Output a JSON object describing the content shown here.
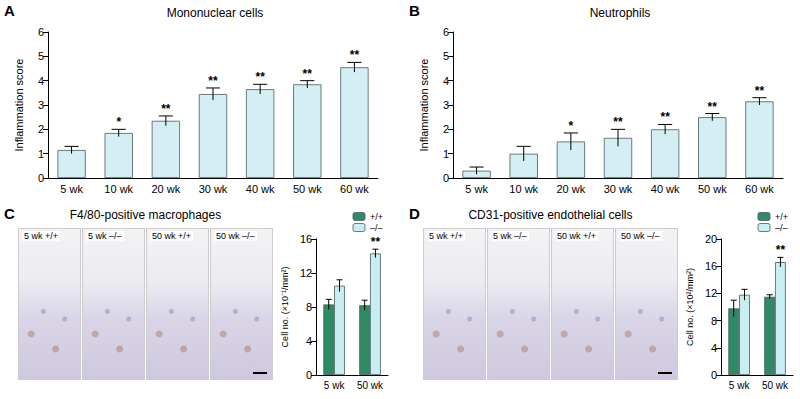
{
  "chart_data": [
    {
      "type": "bar",
      "panel": "A",
      "title": "Mononuclear cells",
      "y_label": "Inflammation score",
      "categories": [
        "5 wk",
        "10 wk",
        "20 wk",
        "30 wk",
        "40 wk",
        "50 wk",
        "60 wk"
      ],
      "values": [
        1.15,
        1.85,
        2.35,
        3.45,
        3.65,
        3.85,
        4.55
      ],
      "errors": [
        0.15,
        0.15,
        0.2,
        0.25,
        0.2,
        0.15,
        0.2
      ],
      "significance": [
        null,
        "*",
        "**",
        "**",
        "**",
        "**",
        "**"
      ],
      "color": "#d3eff3",
      "ylim": [
        0,
        6
      ],
      "yticks": [
        0,
        1,
        2,
        3,
        4,
        5,
        6
      ],
      "grid": false
    },
    {
      "type": "bar",
      "panel": "B",
      "title": "Neutrophils",
      "y_label": "Inflammation score",
      "categories": [
        "5 wk",
        "10 wk",
        "20 wk",
        "30 wk",
        "40 wk",
        "50 wk",
        "60 wk"
      ],
      "values": [
        0.3,
        1.0,
        1.5,
        1.65,
        2.0,
        2.5,
        3.15
      ],
      "errors": [
        0.15,
        0.3,
        0.35,
        0.35,
        0.2,
        0.15,
        0.15
      ],
      "significance": [
        null,
        null,
        "*",
        "**",
        "**",
        "**",
        "**"
      ],
      "color": "#d3eff3",
      "ylim": [
        0,
        6
      ],
      "yticks": [
        0,
        1,
        2,
        3,
        4,
        5,
        6
      ],
      "grid": false
    },
    {
      "type": "bar",
      "panel": "C",
      "title": "F4/80-positive macrophages",
      "y_label": "Cell no. (×10⁻¹/mm²)",
      "image_labels": [
        "5 wk +/+",
        "5 wk –/–",
        "50 wk +/+",
        "50 wk –/–"
      ],
      "categories": [
        "5 wk",
        "50 wk"
      ],
      "series": [
        {
          "name": "+/+",
          "color": "#2e8b66",
          "values": [
            8.3,
            8.2
          ],
          "errors": [
            0.6,
            0.6
          ],
          "significance": [
            null,
            null
          ]
        },
        {
          "name": "–/–",
          "color": "#c8eef2",
          "values": [
            10.5,
            14.3
          ],
          "errors": [
            0.7,
            0.5
          ],
          "significance": [
            null,
            "**"
          ]
        }
      ],
      "legend": "top",
      "ylim": [
        0,
        16
      ],
      "yticks": [
        0,
        4,
        8,
        12,
        16
      ],
      "grid": false
    },
    {
      "type": "bar",
      "panel": "D",
      "title": "CD31-positive endothelial cells",
      "y_label": "Cell no. (×10²/mm²)",
      "image_labels": [
        "5 wk +/+",
        "5 wk –/–",
        "50 wk +/+",
        "50 wk –/–"
      ],
      "categories": [
        "5 wk",
        "50 wk"
      ],
      "series": [
        {
          "name": "+/+",
          "color": "#2e8b66",
          "values": [
            9.8,
            11.5
          ],
          "errors": [
            1.2,
            0.3
          ],
          "significance": [
            null,
            null
          ]
        },
        {
          "name": "–/–",
          "color": "#c8eef2",
          "values": [
            11.8,
            16.6
          ],
          "errors": [
            0.8,
            0.7
          ],
          "significance": [
            null,
            "**"
          ]
        }
      ],
      "legend": "top",
      "ylim": [
        0,
        20
      ],
      "yticks": [
        0,
        4,
        8,
        12,
        16,
        20
      ],
      "grid": false
    }
  ]
}
